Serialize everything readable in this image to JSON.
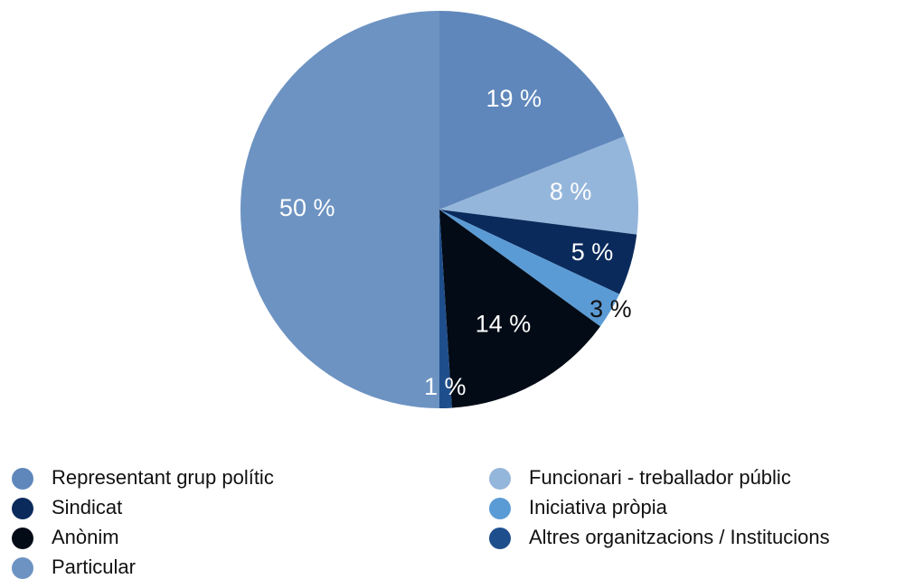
{
  "chart_data": {
    "type": "pie",
    "categories": [
      "Representant grup polític",
      "Funcionari - treballador públic",
      "Sindicat",
      "Iniciativa pròpia",
      "Anònim",
      "Altres organitzacions / Institucions",
      "Particular"
    ],
    "values": [
      19,
      8,
      5,
      3,
      14,
      1,
      50
    ],
    "value_labels": [
      "19 %",
      "8 %",
      "5 %",
      "3 %",
      "14 %",
      "1 %",
      "50 %"
    ],
    "colors": [
      "#5f87bb",
      "#95b6db",
      "#0b2a5c",
      "#5b9bd5",
      "#020b16",
      "#1f4e8c",
      "#6d93c2"
    ]
  }
}
